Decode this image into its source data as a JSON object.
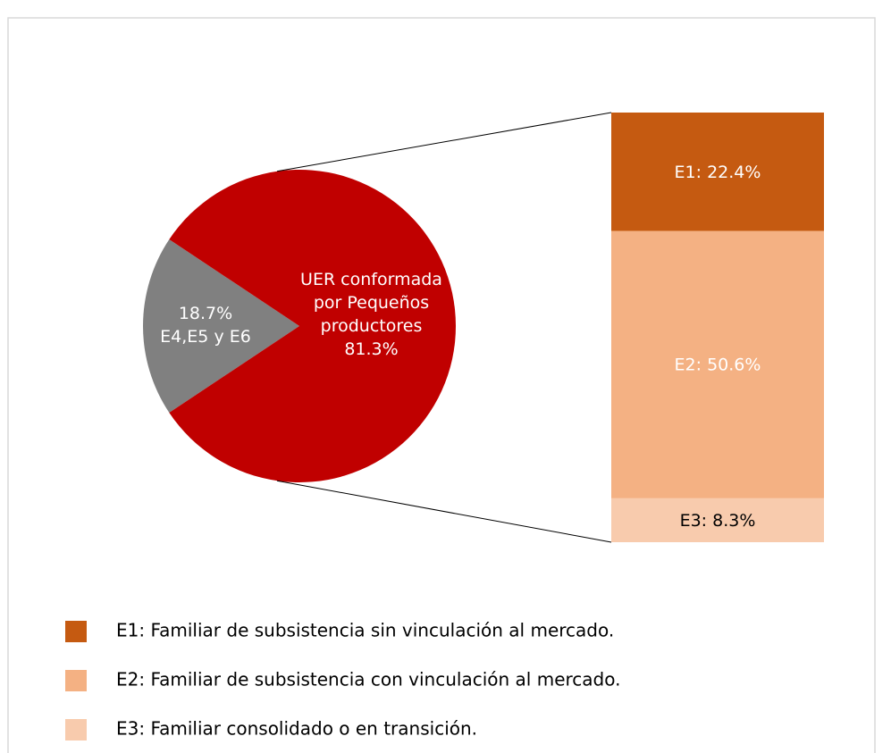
{
  "chart_data": {
    "type": "pie-of-bar",
    "categories": [
      "E4,E5 y E6",
      "UER conformada por Pequeños productores"
    ],
    "values": [
      18.7,
      81.3
    ],
    "value_labels": [
      "18.7%",
      "81.3%"
    ],
    "colors": [
      "#808080",
      "#c00000"
    ],
    "bar": {
      "categories": [
        "E1",
        "E2",
        "E3"
      ],
      "values": [
        22.4,
        50.6,
        8.3
      ],
      "value_labels": [
        "E1: 22.4%",
        "E2: 50.6%",
        "E3: 8.3%"
      ],
      "colors": [
        "#c55a11",
        "#f4b183",
        "#f8cbad"
      ]
    },
    "legend": [
      "E1: Familiar de subsistencia sin vinculación al mercado.",
      "E2: Familiar de subsistencia con vinculación al mercado.",
      "E3: Familiar consolidado o en transición."
    ]
  }
}
